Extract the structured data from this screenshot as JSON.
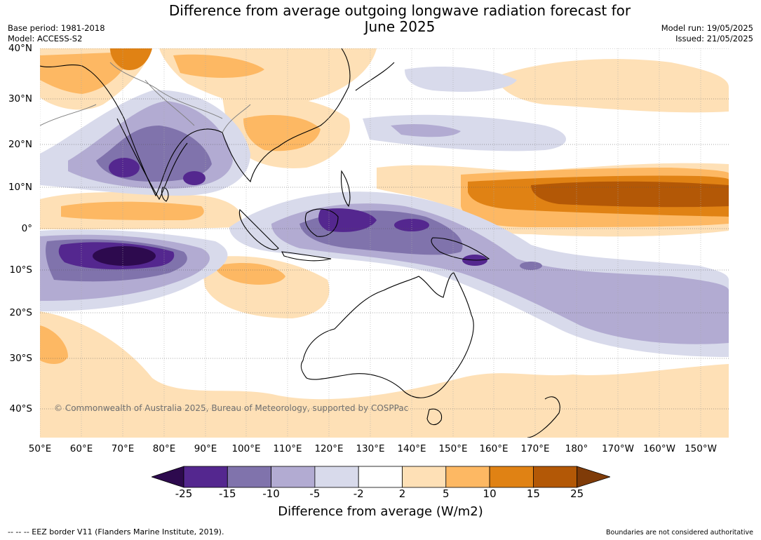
{
  "title_line1": "Difference from average outgoing longwave radiation forecast for",
  "title_line2": "June 2025",
  "base_period": "Base period: 1981-2018",
  "model": "Model: ACCESS-S2",
  "model_run": "Model run: 19/05/2025",
  "issued": "Issued: 21/05/2025",
  "lat_labels": [
    "40°N",
    "30°N",
    "20°N",
    "10°N",
    "0°",
    "10°S",
    "20°S",
    "30°S",
    "40°S"
  ],
  "lon_labels": [
    "50°E",
    "60°E",
    "70°E",
    "80°E",
    "90°E",
    "100°E",
    "110°E",
    "120°E",
    "130°E",
    "140°E",
    "150°E",
    "160°E",
    "170°E",
    "180°",
    "170°W",
    "160°W",
    "150°W"
  ],
  "copyright": "© Commonwealth of Australia 2025, Bureau of Meteorology, supported by COSPPac",
  "colorbar": {
    "ticks": [
      "-25",
      "-15",
      "-10",
      "-5",
      "-2",
      "2",
      "5",
      "10",
      "15",
      "25"
    ],
    "colors": [
      "#2d0a4e",
      "#54278f",
      "#8073ac",
      "#b2abd2",
      "#d8daeb",
      "#ffffff",
      "#fee0b6",
      "#fdb863",
      "#e08214",
      "#b35806",
      "#7f3b08"
    ],
    "title": "Difference from average (W/m2)"
  },
  "footer_left": "--  --  -- EEZ border V11 (Flanders Marine Institute, 2019).",
  "footer_right": "Boundaries are not considered authoritative"
}
